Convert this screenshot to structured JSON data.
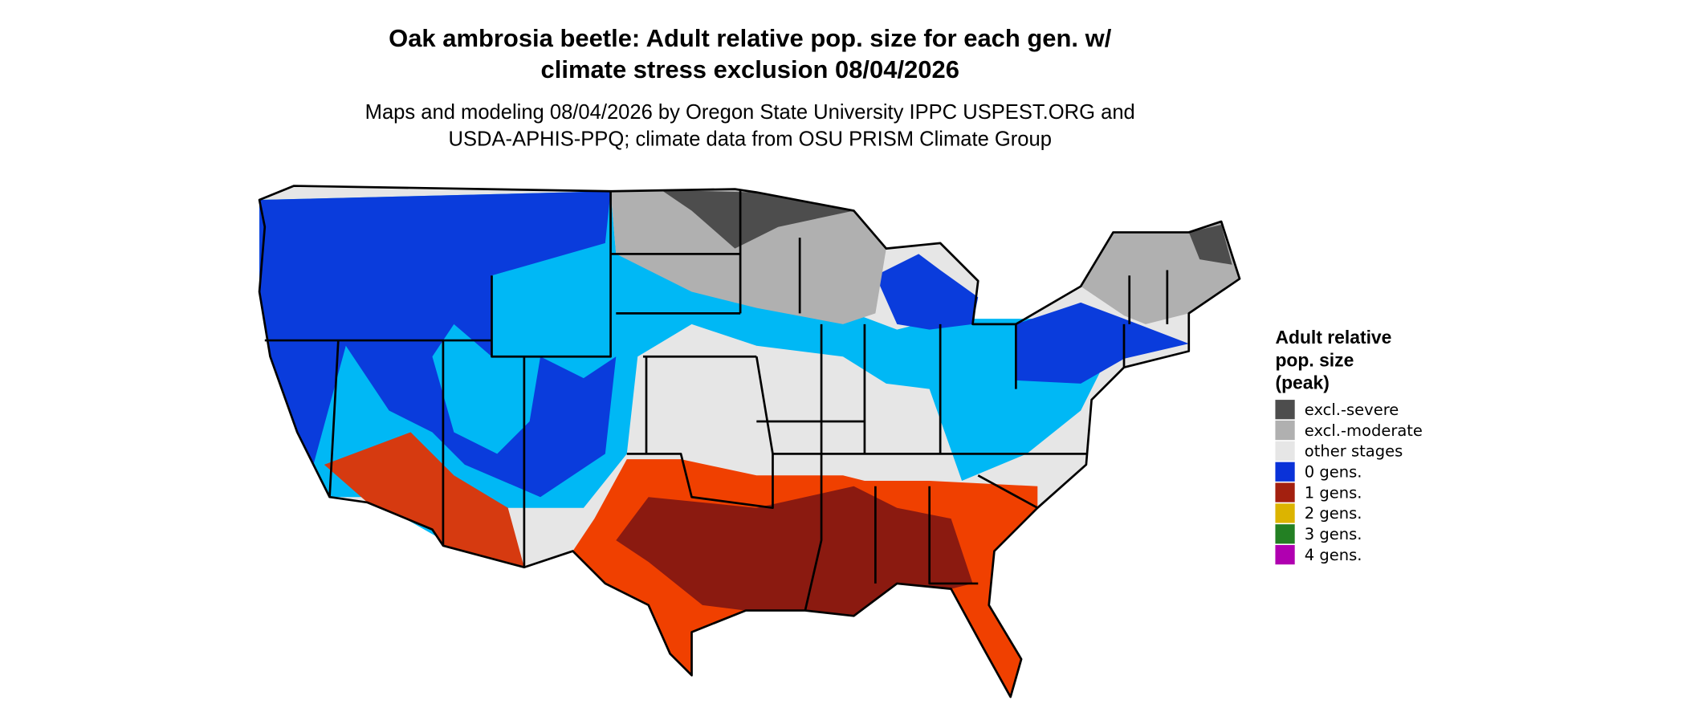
{
  "title": [
    "Oak ambrosia beetle: Adult relative pop. size for each gen. w/",
    "climate stress exclusion 08/04/2026"
  ],
  "subtitle": [
    "Maps and modeling 08/04/2026 by Oregon State University IPPC USPEST.ORG and",
    "USDA-APHIS-PPQ; climate data from OSU PRISM Climate Group"
  ],
  "legend": {
    "title": [
      "Adult relative",
      "pop. size",
      "(peak)"
    ],
    "items": [
      {
        "label": "excl.-severe",
        "color": "#4d4d4d"
      },
      {
        "label": "excl.-moderate",
        "color": "#b0b0b0"
      },
      {
        "label": "other stages",
        "color": "#e6e6e6"
      },
      {
        "label": "0 gens.",
        "color": "#0a32d8"
      },
      {
        "label": "1 gens.",
        "color": "#a3200f"
      },
      {
        "label": "2 gens.",
        "color": "#dcb400"
      },
      {
        "label": "3 gens.",
        "color": "#238023"
      },
      {
        "label": "4 gens.",
        "color": "#b000b0"
      }
    ]
  }
}
